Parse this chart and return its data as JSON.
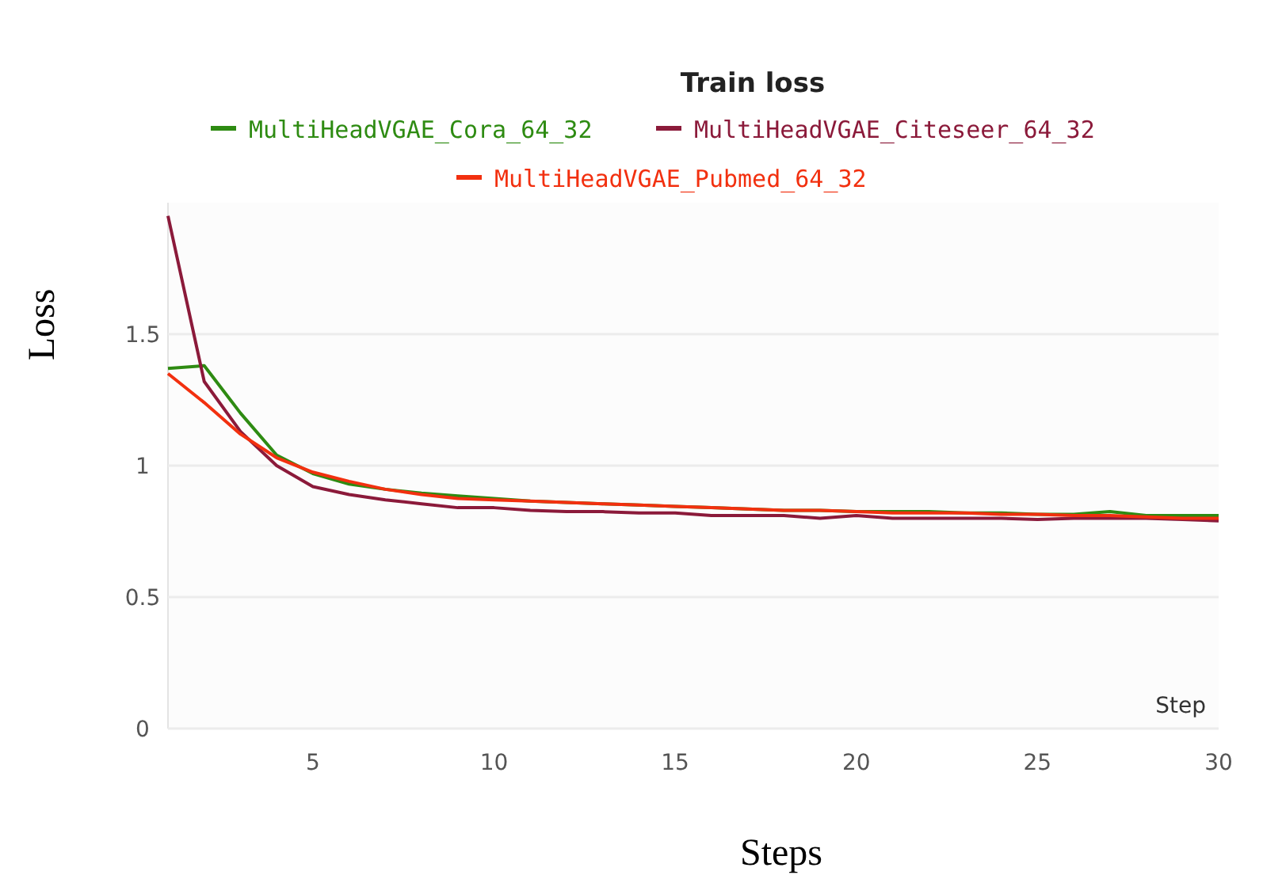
{
  "chart_data": {
    "type": "line",
    "title": "Train loss",
    "xlabel": "Steps",
    "ylabel": "Loss",
    "annotations": [
      "Step"
    ],
    "x": [
      1,
      2,
      3,
      4,
      5,
      6,
      7,
      8,
      9,
      10,
      11,
      12,
      13,
      14,
      15,
      16,
      17,
      18,
      19,
      20,
      21,
      22,
      23,
      24,
      25,
      26,
      27,
      28,
      29,
      30
    ],
    "series": [
      {
        "name": "MultiHeadVGAE_Cora_64_32",
        "color": "#2e8b12",
        "values": [
          1.37,
          1.38,
          1.2,
          1.04,
          0.97,
          0.93,
          0.91,
          0.895,
          0.885,
          0.875,
          0.865,
          0.86,
          0.855,
          0.85,
          0.845,
          0.84,
          0.835,
          0.83,
          0.83,
          0.825,
          0.825,
          0.825,
          0.82,
          0.82,
          0.815,
          0.815,
          0.825,
          0.81,
          0.81,
          0.81
        ]
      },
      {
        "name": "MultiHeadVGAE_Citeseer_64_32",
        "color": "#8b1a3a",
        "values": [
          1.95,
          1.32,
          1.13,
          1.0,
          0.92,
          0.89,
          0.87,
          0.855,
          0.84,
          0.84,
          0.83,
          0.825,
          0.825,
          0.82,
          0.82,
          0.81,
          0.81,
          0.81,
          0.8,
          0.81,
          0.8,
          0.8,
          0.8,
          0.8,
          0.795,
          0.8,
          0.8,
          0.8,
          0.795,
          0.79
        ]
      },
      {
        "name": "MultiHeadVGAE_Pubmed_64_32",
        "color": "#f2300f",
        "values": [
          1.35,
          1.24,
          1.12,
          1.03,
          0.975,
          0.94,
          0.91,
          0.89,
          0.875,
          0.87,
          0.865,
          0.86,
          0.855,
          0.85,
          0.845,
          0.84,
          0.835,
          0.83,
          0.83,
          0.825,
          0.82,
          0.82,
          0.82,
          0.815,
          0.815,
          0.81,
          0.81,
          0.805,
          0.8,
          0.8
        ]
      }
    ],
    "xlim": [
      1,
      30
    ],
    "xticks": [
      5,
      10,
      15,
      20,
      25,
      30
    ],
    "ylim": [
      0,
      2
    ],
    "yticks": [
      0,
      0.5,
      1,
      1.5
    ],
    "grid": "y",
    "legend": "top",
    "marker": "none",
    "line_style": "solid"
  }
}
